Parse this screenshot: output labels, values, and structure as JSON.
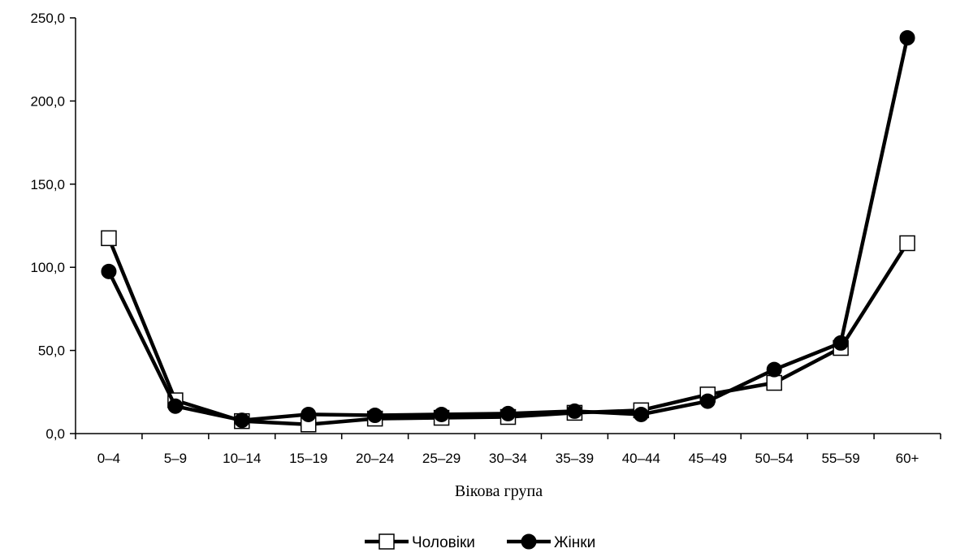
{
  "chart_data": {
    "type": "line",
    "title": "",
    "xlabel": "Вікова група",
    "ylabel": "",
    "categories": [
      "0–4",
      "5–9",
      "10–14",
      "15–19",
      "20–24",
      "25–29",
      "30–34",
      "35–39",
      "40–44",
      "45–49",
      "50–54",
      "55–59",
      "60+"
    ],
    "ylim": [
      0,
      250
    ],
    "yticks": [
      0,
      50,
      100,
      150,
      200,
      250
    ],
    "ytick_labels": [
      "0,0",
      "50,0",
      "100,0",
      "150,0",
      "200,0",
      "250,0"
    ],
    "grid": false,
    "legend_position": "bottom",
    "series": [
      {
        "name": "Чоловіки",
        "marker": "square-open",
        "color": "#000000",
        "values": [
          117.5,
          20.0,
          7.5,
          5.5,
          9.0,
          9.5,
          10.0,
          12.5,
          14.0,
          23.5,
          30.5,
          51.5,
          114.5
        ]
      },
      {
        "name": "Жінки",
        "marker": "circle-filled",
        "color": "#000000",
        "values": [
          97.5,
          16.5,
          8.0,
          11.5,
          11.0,
          11.5,
          12.0,
          13.5,
          11.5,
          19.5,
          38.5,
          54.5,
          238.0
        ]
      }
    ]
  }
}
